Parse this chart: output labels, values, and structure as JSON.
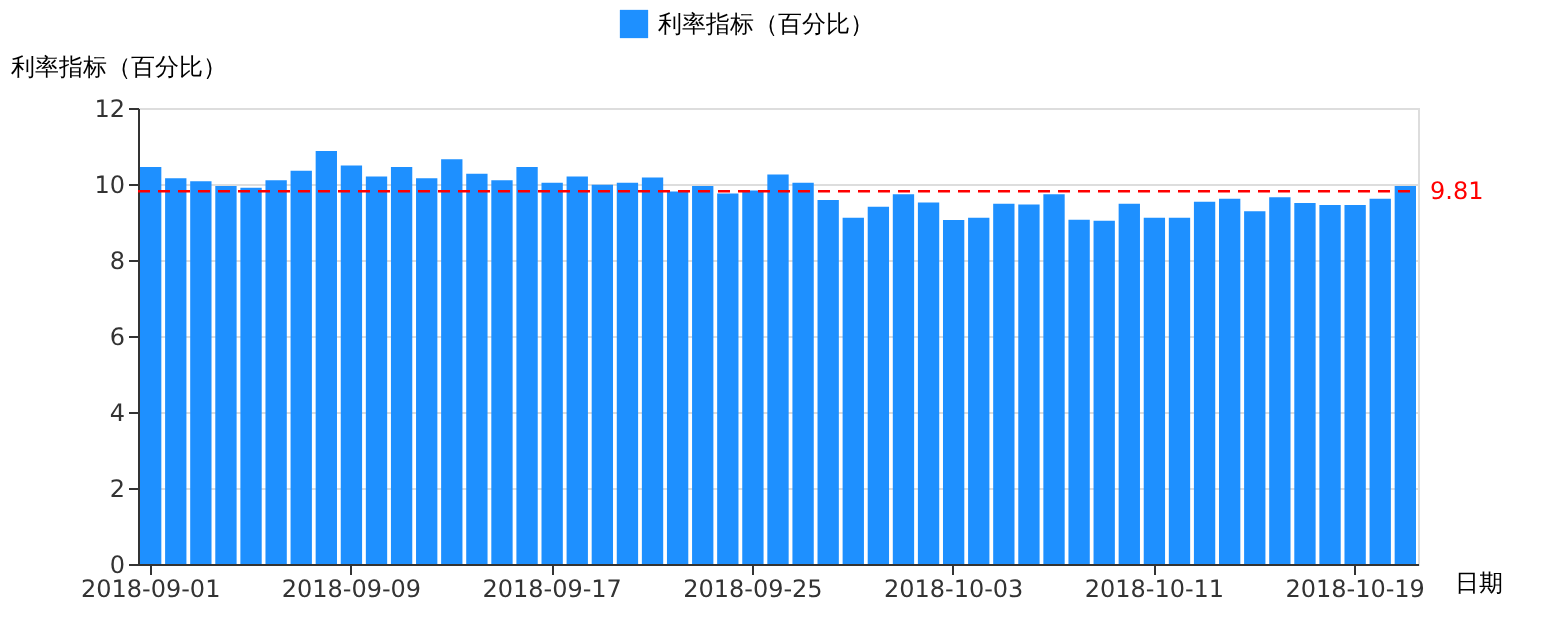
{
  "chart_data": {
    "type": "bar",
    "ylabel": "利率指标（百分比）",
    "xlabel": "日期",
    "categories": [
      "2018-09-01",
      null,
      null,
      null,
      null,
      null,
      null,
      null,
      "2018-09-09",
      null,
      null,
      null,
      null,
      null,
      null,
      null,
      "2018-09-17",
      null,
      null,
      null,
      null,
      null,
      null,
      null,
      "2018-09-25",
      null,
      null,
      null,
      null,
      null,
      null,
      null,
      "2018-10-03",
      null,
      null,
      null,
      null,
      null,
      null,
      null,
      "2018-10-11",
      null,
      null,
      null,
      null,
      null,
      null,
      null,
      "2018-10-19",
      null,
      null
    ],
    "series": [
      {
        "name": "利率指标（百分比）",
        "color": "#1e90ff",
        "values": [
          10.45,
          10.15,
          10.07,
          9.95,
          9.9,
          10.1,
          10.35,
          10.87,
          10.49,
          10.2,
          10.45,
          10.15,
          10.65,
          10.27,
          10.1,
          10.45,
          10.03,
          10.2,
          9.98,
          10.03,
          10.17,
          9.8,
          9.95,
          9.75,
          9.83,
          10.25,
          10.03,
          9.58,
          9.11,
          9.4,
          9.73,
          9.51,
          9.05,
          9.11,
          9.48,
          9.46,
          9.73,
          9.06,
          9.03,
          9.48,
          9.11,
          9.11,
          9.53,
          9.61,
          9.28,
          9.65,
          9.5,
          9.45,
          9.45,
          9.61,
          9.95
        ]
      }
    ],
    "ylim": [
      0,
      12
    ],
    "yticks": [
      0,
      2,
      4,
      6,
      8,
      10,
      12
    ],
    "ref_lines": [
      {
        "axis": "y",
        "value": 9.81,
        "label": "9.81",
        "color": "#ff0000",
        "line_style": "dashed"
      }
    ],
    "grid": "y",
    "legend": "top"
  }
}
